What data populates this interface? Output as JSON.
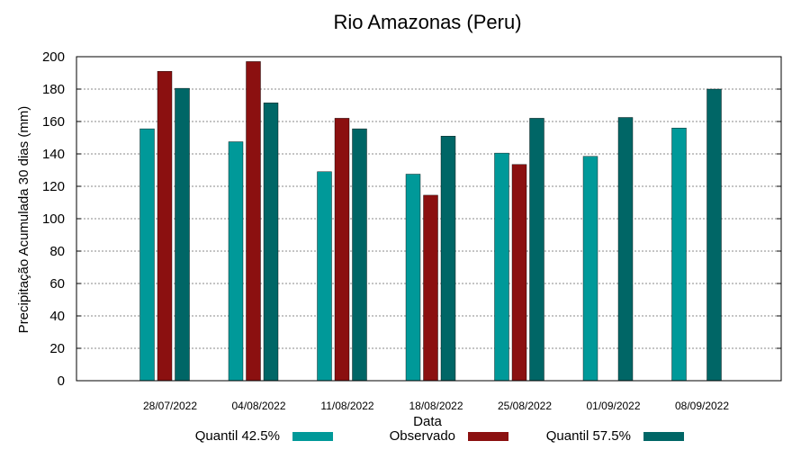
{
  "chart_data": {
    "type": "bar",
    "title": "Rio Amazonas (Peru)",
    "xlabel": "Data",
    "ylabel": "Precipitação Acumulada 30 dias (mm)",
    "ylim": [
      0,
      200
    ],
    "yticks": [
      "0",
      "20",
      "40",
      "60",
      "80",
      "100",
      "120",
      "140",
      "160",
      "180",
      "200"
    ],
    "grid": true,
    "legend_position": "bottom",
    "categories": [
      "28/07/2022",
      "04/08/2022",
      "11/08/2022",
      "18/08/2022",
      "25/08/2022",
      "01/09/2022",
      "08/09/2022"
    ],
    "series": [
      {
        "name": "Quantil 42.5%",
        "color": "#009999",
        "values": [
          155.5,
          147.5,
          129,
          127.5,
          140.5,
          138.5,
          156
        ]
      },
      {
        "name": "Observado",
        "color": "#8b1010",
        "values": [
          191,
          197,
          162,
          114.5,
          133.5,
          null,
          null
        ]
      },
      {
        "name": "Quantil 57.5%",
        "color": "#006666",
        "values": [
          180.5,
          171.5,
          155.5,
          151,
          162,
          162.5,
          180
        ]
      }
    ]
  }
}
